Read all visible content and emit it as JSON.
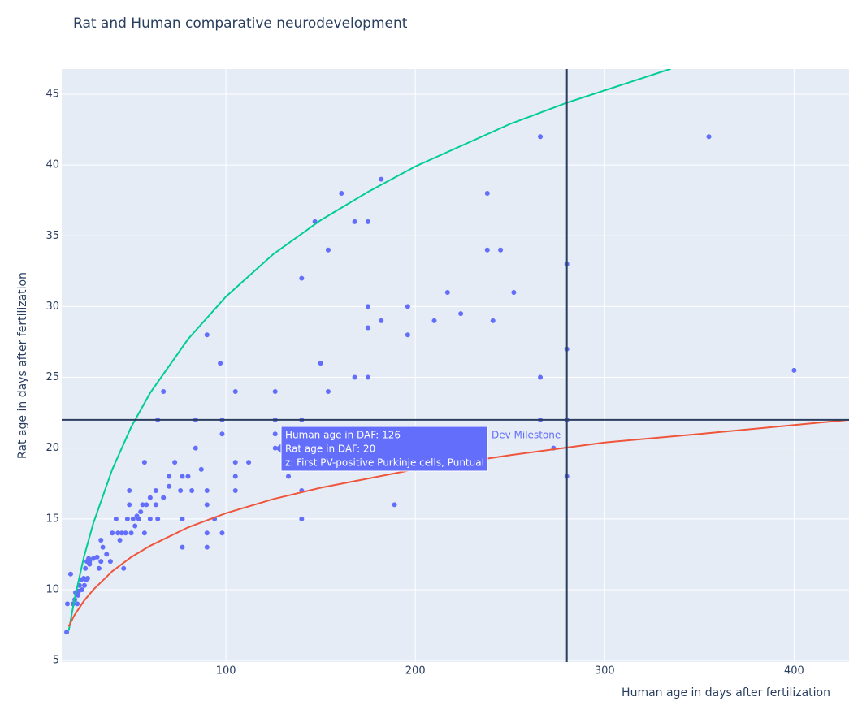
{
  "chart_data": {
    "type": "scatter",
    "title": "Rat and Human comparative neurodevelopment",
    "x_label": "Human age in days after fertilization",
    "y_label": "Rat age in days after fertilization",
    "xlim": [
      13.3,
      429
    ],
    "ylim": [
      4.89,
      46.78
    ],
    "xticks": [
      100,
      200,
      300,
      400
    ],
    "yticks": [
      5,
      10,
      15,
      20,
      25,
      30,
      35,
      40,
      45
    ],
    "grid": true,
    "series": [
      {
        "name": "Dev Milestone",
        "mode": "markers",
        "color": "#636efa",
        "x": [
          15.9,
          16.3,
          18,
          19.3,
          20.2,
          20.6,
          21.5,
          21.9,
          22.3,
          22.7,
          23.6,
          24,
          24.9,
          25.8,
          26.6,
          27.5,
          28,
          25.3,
          26.2,
          27,
          28,
          30,
          32,
          33,
          34,
          34,
          35,
          37,
          39,
          40,
          42,
          43,
          44,
          45,
          46,
          47,
          48,
          49,
          49,
          50,
          51,
          52,
          53,
          54,
          55,
          56,
          57,
          57,
          58,
          60,
          60,
          63,
          63,
          64,
          64,
          67,
          67,
          70,
          70,
          73,
          76,
          77,
          77,
          77,
          80,
          82,
          84,
          84,
          87,
          90,
          90,
          90,
          90,
          90,
          94,
          97,
          98,
          98,
          98,
          105,
          105,
          105,
          105,
          112,
          126,
          126,
          126,
          126,
          133,
          140,
          140,
          140,
          140,
          147,
          150,
          154,
          154,
          161,
          168,
          168,
          175,
          175,
          175,
          175,
          182,
          182,
          189,
          196,
          196,
          210,
          217,
          224,
          238,
          238,
          241,
          245,
          252,
          266,
          266,
          266,
          273,
          280,
          280,
          280,
          280,
          355,
          400
        ],
        "y": [
          7,
          9,
          11.1,
          9,
          9.3,
          9.8,
          9,
          9.6,
          9.9,
          10.3,
          10.7,
          10,
          10.8,
          11.5,
          12,
          12.2,
          11.8,
          10.3,
          10.7,
          10.8,
          12,
          12.2,
          12.3,
          11.5,
          13.5,
          12,
          13,
          12.5,
          12,
          14,
          15,
          14,
          13.5,
          14,
          11.5,
          14,
          15,
          16,
          17,
          14,
          15,
          14.5,
          15.2,
          15,
          15.5,
          16,
          19,
          14,
          16,
          15,
          16.5,
          17,
          16,
          15,
          22,
          24,
          16.5,
          17.3,
          18,
          19,
          17,
          18,
          13,
          15,
          18,
          17,
          22,
          20,
          18.5,
          28,
          17,
          13,
          16,
          14,
          15,
          26,
          21,
          22,
          14,
          24,
          19,
          17,
          18,
          19,
          24,
          22,
          21,
          20,
          18,
          32,
          22,
          17,
          15,
          36,
          26,
          34,
          24,
          38,
          36,
          25,
          36,
          30,
          28.5,
          25,
          39,
          29,
          16,
          30,
          28,
          29,
          31,
          29.5,
          38,
          34,
          29,
          34,
          31,
          42,
          25,
          22,
          20,
          33,
          27,
          22,
          18,
          42,
          25.5
        ]
      },
      {
        "mode": "lines",
        "color": "#00cc96",
        "x": [
          17,
          20,
          25,
          30,
          40,
          50,
          60,
          80,
          100,
          125,
          150,
          175,
          200,
          250,
          280,
          335
        ],
        "y": [
          7.1,
          9.3,
          12.3,
          14.7,
          18.5,
          21.5,
          23.9,
          27.7,
          30.7,
          33.7,
          36.1,
          38.1,
          39.9,
          42.9,
          44.4,
          46.8
        ]
      },
      {
        "mode": "lines",
        "color": "#ef553b",
        "x": [
          17,
          20,
          25,
          30,
          40,
          50,
          60,
          80,
          100,
          125,
          150,
          200,
          250,
          300,
          350,
          429
        ],
        "y": [
          7.4,
          8.2,
          9.2,
          10,
          11.3,
          12.3,
          13.1,
          14.4,
          15.4,
          16.4,
          17.2,
          18.5,
          19.5,
          20.4,
          21,
          22
        ]
      }
    ],
    "hlines": [
      22
    ],
    "vlines": [
      280
    ],
    "ref_color": "#2a3f5f",
    "hover": {
      "name": "Dev Milestone",
      "lines": [
        "Human age in DAF: 126",
        "Rat age in DAF: 20",
        "z: First PV-positive Purkinje cells, Puntual"
      ]
    }
  }
}
